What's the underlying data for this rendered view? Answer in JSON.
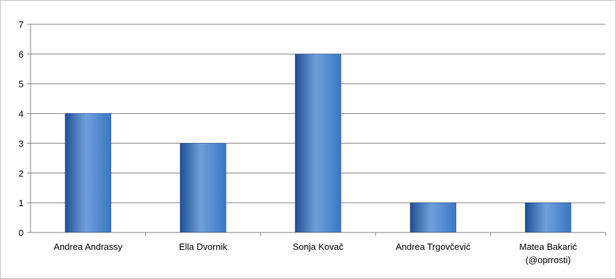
{
  "chart_data": {
    "type": "bar",
    "title": "",
    "xlabel": "",
    "ylabel": "",
    "categories": [
      [
        "Andrea Andrassy"
      ],
      [
        "Ella Dvornik"
      ],
      [
        "Sonja Kovač"
      ],
      [
        "Andrea Trgovčević"
      ],
      [
        "Matea Bakarić",
        "(@oprrosti)"
      ]
    ],
    "values": [
      4,
      3,
      6,
      1,
      1
    ],
    "ylim": [
      0,
      7
    ],
    "yticks": [
      "0",
      "1",
      "2",
      "3",
      "4",
      "5",
      "6",
      "7"
    ],
    "grid": true,
    "legend": "none",
    "bar_color": "#3a76c4",
    "bar_color_dark": "#1f4f94",
    "bar_color_light": "#6fa0dc",
    "grid_color": "#808080"
  }
}
